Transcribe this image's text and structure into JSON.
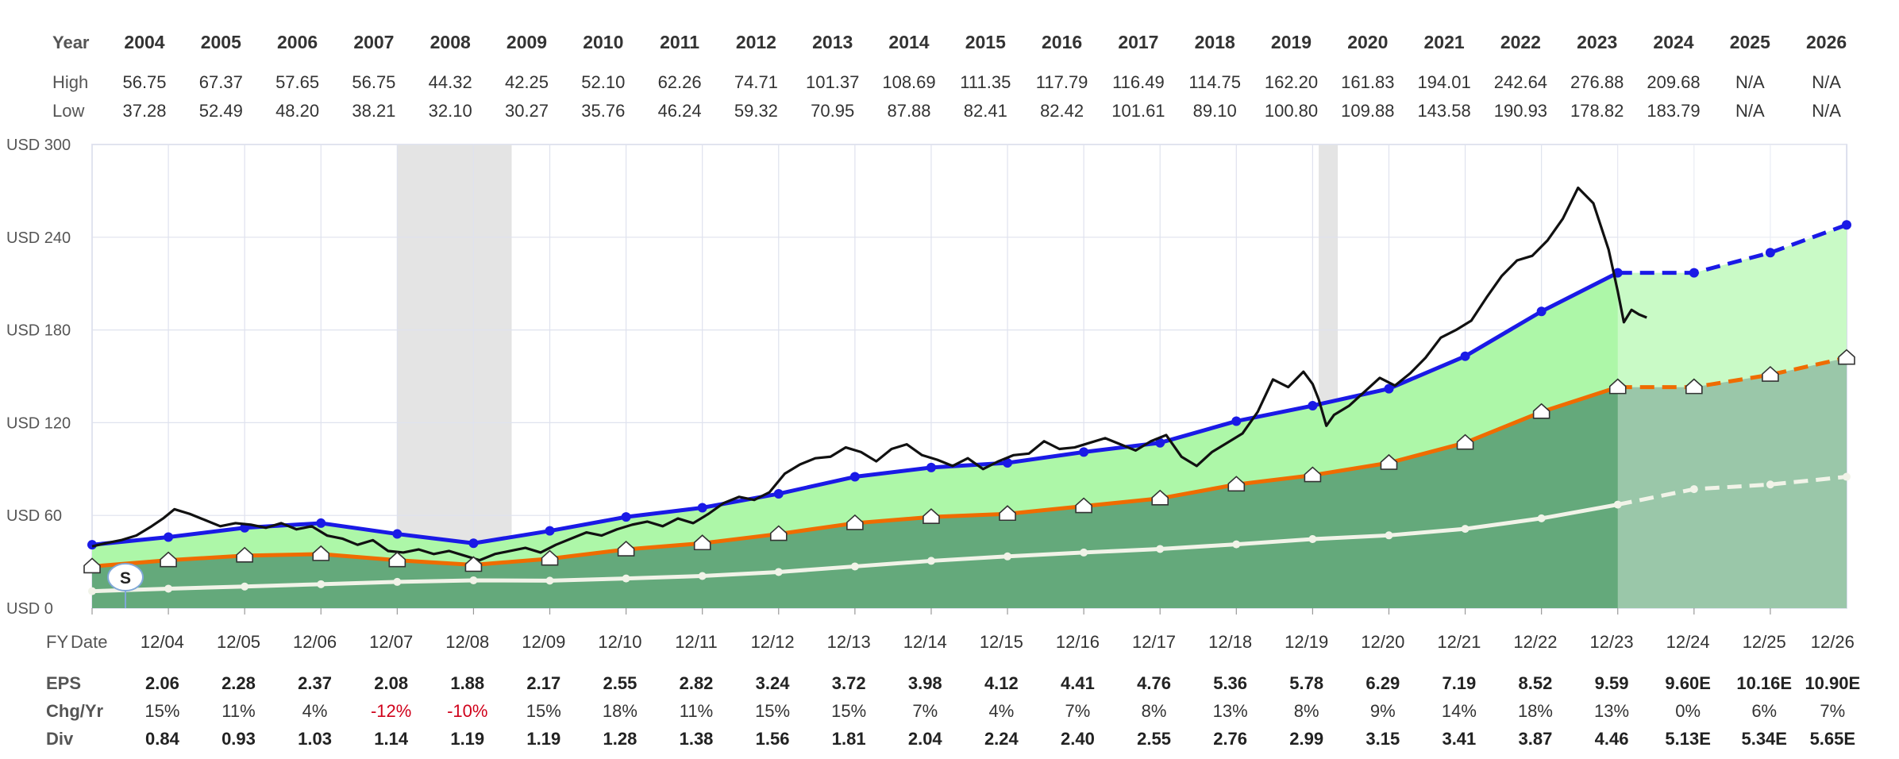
{
  "chart_data": {
    "type": "line",
    "title": "",
    "ylabel": "",
    "xlabel": "FY Date",
    "ylim": [
      0,
      300
    ],
    "y_ticks": [
      0,
      60,
      120,
      180,
      240,
      300
    ],
    "y_tick_labels": [
      "USD 0",
      "USD 60",
      "USD 120",
      "USD 180",
      "USD 240",
      "USD 300"
    ],
    "x_range": [
      2003.92,
      2026.92
    ],
    "grid": true,
    "table_top": {
      "year_label": "Year",
      "high_label": "High",
      "low_label": "Low",
      "years": [
        "2004",
        "2005",
        "2006",
        "2007",
        "2008",
        "2009",
        "2010",
        "2011",
        "2012",
        "2013",
        "2014",
        "2015",
        "2016",
        "2017",
        "2018",
        "2019",
        "2020",
        "2021",
        "2022",
        "2023",
        "2024",
        "2025",
        "2026"
      ],
      "high": [
        "56.75",
        "67.37",
        "57.65",
        "56.75",
        "44.32",
        "42.25",
        "52.10",
        "62.26",
        "74.71",
        "101.37",
        "108.69",
        "111.35",
        "117.79",
        "116.49",
        "114.75",
        "162.20",
        "161.83",
        "194.01",
        "242.64",
        "276.88",
        "209.68",
        "N/A",
        "N/A"
      ],
      "low": [
        "37.28",
        "52.49",
        "48.20",
        "38.21",
        "32.10",
        "30.27",
        "35.76",
        "46.24",
        "59.32",
        "70.95",
        "87.88",
        "82.41",
        "82.42",
        "101.61",
        "89.10",
        "100.80",
        "109.88",
        "143.58",
        "190.93",
        "178.82",
        "183.79",
        "N/A",
        "N/A"
      ]
    },
    "table_bottom": {
      "fy_label": "FY",
      "date_label": "Date",
      "eps_label": "EPS",
      "chg_label": "Chg/Yr",
      "div_label": "Div",
      "dates": [
        "12/04",
        "12/05",
        "12/06",
        "12/07",
        "12/08",
        "12/09",
        "12/10",
        "12/11",
        "12/12",
        "12/13",
        "12/14",
        "12/15",
        "12/16",
        "12/17",
        "12/18",
        "12/19",
        "12/20",
        "12/21",
        "12/22",
        "12/23",
        "12/24",
        "12/25",
        "12/26"
      ],
      "eps": [
        "2.06",
        "2.28",
        "2.37",
        "2.08",
        "1.88",
        "2.17",
        "2.55",
        "2.82",
        "3.24",
        "3.72",
        "3.98",
        "4.12",
        "4.41",
        "4.76",
        "5.36",
        "5.78",
        "6.29",
        "7.19",
        "8.52",
        "9.59",
        "9.60E",
        "10.16E",
        "10.90E"
      ],
      "chg": [
        "15%",
        "11%",
        "4%",
        "-12%",
        "-10%",
        "15%",
        "18%",
        "11%",
        "15%",
        "15%",
        "7%",
        "4%",
        "7%",
        "8%",
        "13%",
        "8%",
        "9%",
        "14%",
        "18%",
        "13%",
        "0%",
        "6%",
        "7%"
      ],
      "div": [
        "0.84",
        "0.93",
        "1.03",
        "1.14",
        "1.19",
        "1.19",
        "1.28",
        "1.38",
        "1.56",
        "1.81",
        "2.04",
        "2.24",
        "2.40",
        "2.55",
        "2.76",
        "2.99",
        "3.15",
        "3.41",
        "3.87",
        "4.46",
        "5.13E",
        "5.34E",
        "5.65E"
      ]
    },
    "series": [
      {
        "kind": "eps_normal_pe",
        "x": [
          2003.92,
          2004.92,
          2005.92,
          2006.92,
          2007.92,
          2008.92,
          2009.92,
          2010.92,
          2011.92,
          2012.92,
          2013.92,
          2014.92,
          2015.92,
          2016.92,
          2017.92,
          2018.92,
          2019.92,
          2020.92,
          2021.92,
          2022.92,
          2023.92,
          2024.92,
          2025.92,
          2026.92
        ],
        "y": [
          41,
          46,
          52,
          55,
          48,
          42,
          50,
          59,
          65,
          74,
          85,
          91,
          94,
          101,
          107,
          121,
          131,
          142,
          163,
          192,
          217,
          217,
          230,
          248
        ],
        "color": "#1a1ae6",
        "dashed_from": 2023.92
      },
      {
        "kind": "eps_15pe",
        "x": [
          2003.92,
          2004.92,
          2005.92,
          2006.92,
          2007.92,
          2008.92,
          2009.92,
          2010.92,
          2011.92,
          2012.92,
          2013.92,
          2014.92,
          2015.92,
          2016.92,
          2017.92,
          2018.92,
          2019.92,
          2020.92,
          2021.92,
          2022.92,
          2023.92,
          2024.92,
          2025.92,
          2026.92
        ],
        "y": [
          27,
          31,
          34,
          35,
          31,
          28,
          32,
          38,
          42,
          48,
          55,
          59,
          61,
          66,
          71,
          80,
          86,
          94,
          107,
          127,
          143,
          143,
          151,
          162
        ],
        "color": "#ef6c00",
        "dashed_from": 2023.92
      },
      {
        "kind": "dividends",
        "x": [
          2003.92,
          2004.92,
          2005.92,
          2006.92,
          2007.92,
          2008.92,
          2009.92,
          2010.92,
          2011.92,
          2012.92,
          2013.92,
          2014.92,
          2015.92,
          2016.92,
          2017.92,
          2018.92,
          2019.92,
          2020.92,
          2021.92,
          2022.92,
          2023.92,
          2024.92,
          2025.92,
          2026.92
        ],
        "y": [
          11,
          12.6,
          14,
          15.5,
          17,
          18,
          17.8,
          19.2,
          20.8,
          23.4,
          27,
          30.6,
          33.5,
          36,
          38.3,
          41.3,
          44.7,
          47.1,
          51.3,
          58.1,
          67,
          77,
          80,
          85
        ],
        "color": "#f1f3e8",
        "dashed_from": 2023.92
      },
      {
        "kind": "price",
        "x": [
          2003.92,
          2004.1,
          2004.3,
          2004.5,
          2004.7,
          2004.85,
          2005.0,
          2005.2,
          2005.4,
          2005.6,
          2005.8,
          2006.0,
          2006.2,
          2006.4,
          2006.6,
          2006.8,
          2007.0,
          2007.2,
          2007.4,
          2007.6,
          2007.8,
          2008.0,
          2008.2,
          2008.4,
          2008.6,
          2008.8,
          2009.0,
          2009.2,
          2009.4,
          2009.6,
          2009.8,
          2010.0,
          2010.2,
          2010.4,
          2010.6,
          2010.8,
          2011.0,
          2011.2,
          2011.4,
          2011.6,
          2011.8,
          2012.0,
          2012.2,
          2012.4,
          2012.6,
          2012.8,
          2013.0,
          2013.2,
          2013.4,
          2013.6,
          2013.8,
          2014.0,
          2014.2,
          2014.4,
          2014.6,
          2014.8,
          2015.0,
          2015.2,
          2015.4,
          2015.6,
          2015.8,
          2016.0,
          2016.2,
          2016.4,
          2016.6,
          2016.8,
          2017.0,
          2017.2,
          2017.4,
          2017.6,
          2017.8,
          2018.0,
          2018.2,
          2018.4,
          2018.6,
          2018.8,
          2019.0,
          2019.2,
          2019.4,
          2019.6,
          2019.8,
          2019.92,
          2020.0,
          2020.1,
          2020.2,
          2020.4,
          2020.6,
          2020.8,
          2021.0,
          2021.2,
          2021.4,
          2021.6,
          2021.8,
          2022.0,
          2022.2,
          2022.4,
          2022.6,
          2022.8,
          2023.0,
          2023.2,
          2023.4,
          2023.6,
          2023.8,
          2023.92,
          2024.0,
          2024.1,
          2024.2,
          2024.3
        ],
        "y": [
          40,
          42,
          44,
          47,
          53,
          58,
          64,
          61,
          57,
          53,
          55,
          54,
          52,
          55,
          51,
          53,
          47,
          45,
          41,
          44,
          37,
          36,
          38,
          35,
          37,
          34,
          31,
          35,
          37,
          39,
          36,
          41,
          45,
          49,
          47,
          51,
          54,
          56,
          53,
          58,
          55,
          61,
          68,
          72,
          70,
          75,
          87,
          93,
          97,
          98,
          104,
          101,
          95,
          103,
          106,
          99,
          96,
          92,
          97,
          90,
          95,
          99,
          100,
          108,
          103,
          104,
          107,
          110,
          106,
          102,
          108,
          112,
          98,
          92,
          101,
          107,
          113,
          127,
          148,
          143,
          153,
          145,
          135,
          118,
          125,
          131,
          140,
          149,
          144,
          152,
          162,
          175,
          180,
          186,
          201,
          215,
          225,
          228,
          238,
          252,
          272,
          262,
          232,
          205,
          185,
          193,
          190,
          188
        ],
        "color": "#111111"
      }
    ],
    "recessions": [
      [
        2007.92,
        2009.42
      ],
      [
        2020.0,
        2020.25
      ]
    ],
    "shaded_forecast_start": 2023.92
  }
}
